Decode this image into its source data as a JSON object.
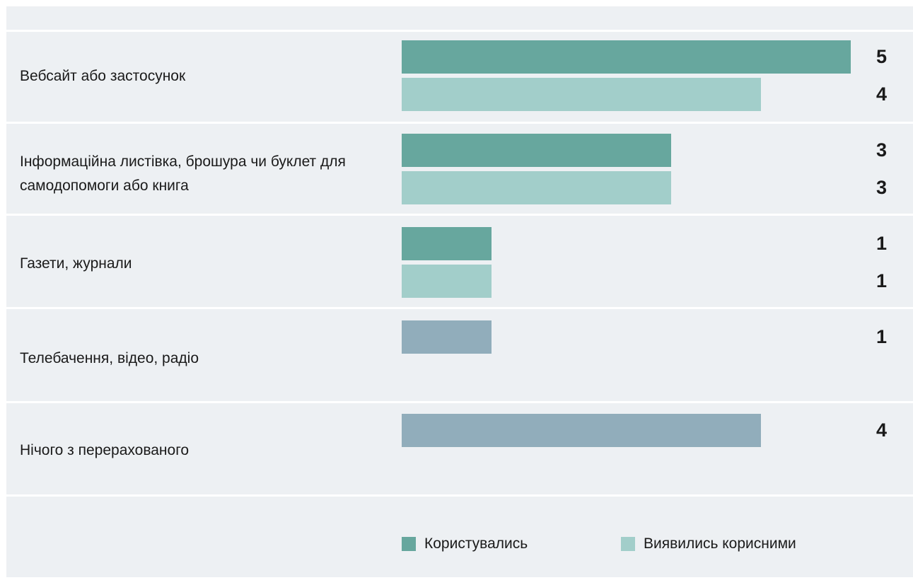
{
  "chart_data": {
    "type": "bar",
    "orientation": "horizontal",
    "categories": [
      "Вебсайт або застосунок",
      "Інформаційна листівка, брошура чи буклет для самодопомоги або книга",
      "Газети, журнали",
      "Телебачення, відео, радіо",
      "Нічого з перерахованого"
    ],
    "series": [
      {
        "name": "Користувались",
        "color": "#67a79e",
        "values": [
          5,
          3,
          1,
          null,
          null
        ]
      },
      {
        "name": "Виявились корисними",
        "color": "#a2ceca",
        "values": [
          4,
          3,
          1,
          null,
          null
        ]
      },
      {
        "color": "#91adbb",
        "values": [
          null,
          null,
          null,
          1,
          4
        ]
      }
    ],
    "xlim": [
      0,
      5
    ],
    "legend_position": "bottom"
  }
}
